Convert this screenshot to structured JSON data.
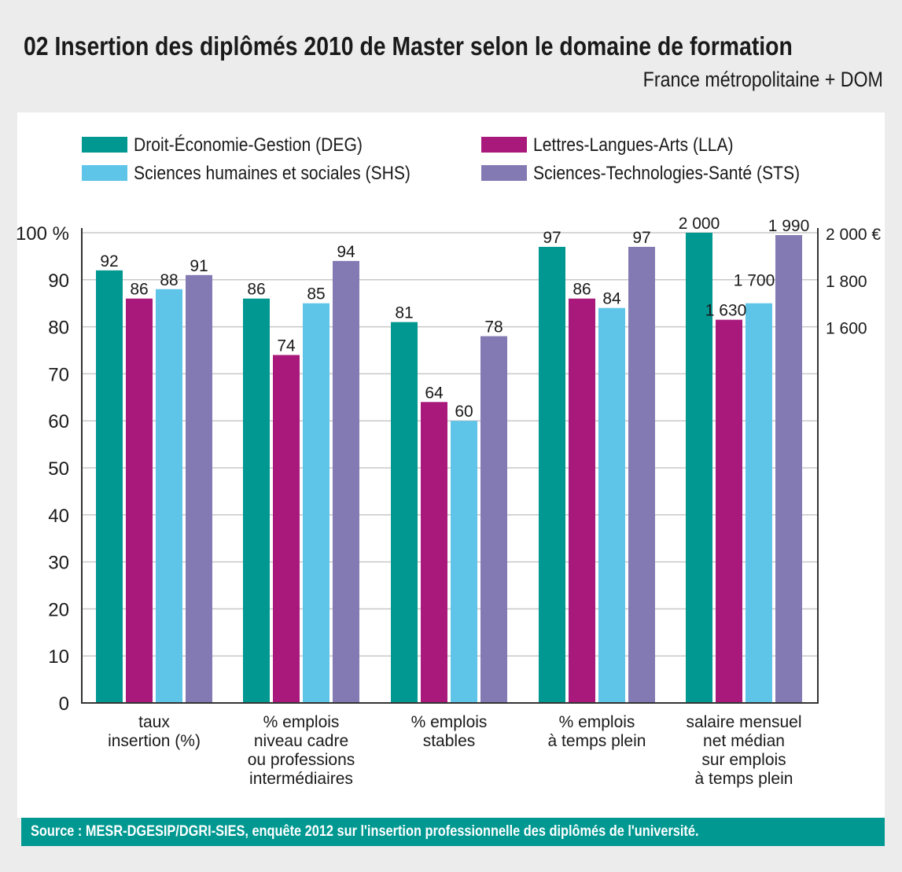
{
  "header": {
    "title": "02   Insertion des diplômés 2010 de Master selon le domaine de formation",
    "subtitle": "France métropolitaine + DOM"
  },
  "footer": {
    "source": "Source : MESR-DGESIP/DGRI-SIES, enquête 2012 sur l'insertion professionnelle des diplômés de l'université."
  },
  "chart_data": {
    "type": "bar",
    "title": "Insertion des diplômés 2010 de Master selon le domaine de formation",
    "subtitle": "France métropolitaine + DOM",
    "xlabel": "",
    "ylabel": "%",
    "ylim": [
      0,
      100
    ],
    "grid": true,
    "legend_position": "top",
    "left_axis": {
      "ticks": [
        0,
        10,
        20,
        30,
        40,
        50,
        60,
        70,
        80,
        90,
        100
      ],
      "tick_labels": [
        "0",
        "10",
        "20",
        "30",
        "40",
        "50",
        "60",
        "70",
        "80",
        "90",
        "100 %"
      ]
    },
    "right_axis": {
      "applies_to_category": "salaire mensuel net médian sur emplois à temps plein",
      "range": [
        1600,
        2000
      ],
      "ticks": [
        1600,
        1800,
        2000
      ],
      "tick_labels": [
        "1 600",
        "1 800",
        "2 000 €"
      ],
      "maps_to_left": {
        "1600": 80,
        "2000": 100
      }
    },
    "categories": [
      [
        "taux",
        "insertion (%)"
      ],
      [
        "% emplois",
        "niveau cadre",
        "ou professions",
        "intermédiaires"
      ],
      [
        "% emplois",
        "stables"
      ],
      [
        "% emplois",
        "à temps plein"
      ],
      [
        "salaire mensuel",
        "net médian",
        "sur emplois",
        "à temps plein"
      ]
    ],
    "series": [
      {
        "name": "Droit-Économie-Gestion (DEG)",
        "color": "#009891",
        "values": [
          92,
          86,
          81,
          97,
          2000
        ],
        "labels": [
          "92",
          "86",
          "81",
          "97",
          "2 000"
        ]
      },
      {
        "name": "Lettres-Langues-Arts (LLA)",
        "color": "#a9197c",
        "values": [
          86,
          74,
          64,
          86,
          1630
        ],
        "labels": [
          "86",
          "74",
          "64",
          "86",
          "1 630"
        ]
      },
      {
        "name": "Sciences humaines et sociales (SHS)",
        "color": "#5ec4e8",
        "values": [
          88,
          85,
          60,
          84,
          1700
        ],
        "labels": [
          "88",
          "85",
          "60",
          "84",
          "1 700"
        ]
      },
      {
        "name": "Sciences-Technologies-Santé (STS)",
        "color": "#837ab4",
        "values": [
          91,
          94,
          78,
          97,
          1990
        ],
        "labels": [
          "91",
          "94",
          "78",
          "97",
          "1 990"
        ]
      }
    ]
  }
}
